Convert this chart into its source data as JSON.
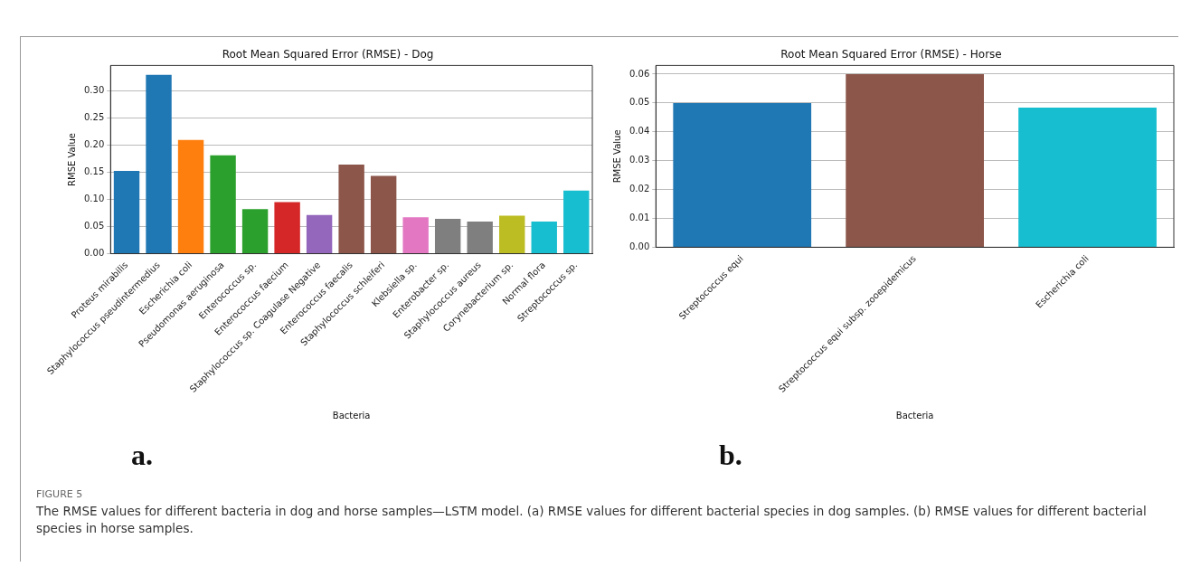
{
  "chart_data": [
    {
      "type": "bar",
      "title": "Root Mean Squared Error (RMSE) - Dog",
      "xlabel": "Bacteria",
      "ylabel": "RMSE Value",
      "categories": [
        "Proteus mirabilis",
        "Staphylococcus pseudintermedius",
        "Escherichia coli",
        "Pseudomonas aeruginosa",
        "Enterococcus sp.",
        "Enterococcus faecium",
        "Staphylococcus sp. Coagulase Negative",
        "Enterococcus faecalis",
        "Staphylococcus schleiferi",
        "Klebsiella sp.",
        "Enterobacter sp.",
        "Staphylococcus aureus",
        "Corynebacterium sp.",
        "Normal flora",
        "Streptococcus sp."
      ],
      "values": [
        0.152,
        0.329,
        0.209,
        0.181,
        0.082,
        0.095,
        0.071,
        0.164,
        0.143,
        0.067,
        0.064,
        0.059,
        0.07,
        0.059,
        0.116
      ],
      "colors": [
        "#1f77b4",
        "#1f77b4",
        "#ff7f0e",
        "#2ca02c",
        "#2ca02c",
        "#d62728",
        "#9467bd",
        "#8c564b",
        "#8c564b",
        "#e377c2",
        "#7f7f7f",
        "#7f7f7f",
        "#bcbd22",
        "#17becf",
        "#17becf"
      ],
      "ylim": [
        0,
        0.346
      ],
      "yticks": [
        {
          "value": 0,
          "label": "0.00"
        },
        {
          "value": 0.05,
          "label": "0.05"
        },
        {
          "value": 0.1,
          "label": "0.10"
        },
        {
          "value": 0.15,
          "label": "0.15"
        },
        {
          "value": 0.2,
          "label": "0.20"
        },
        {
          "value": 0.25,
          "label": "0.25"
        },
        {
          "value": 0.3,
          "label": "0.30"
        }
      ],
      "grid": "y",
      "legend": false,
      "annotations": [
        "a."
      ]
    },
    {
      "type": "bar",
      "title": "Root Mean Squared Error (RMSE) - Horse",
      "xlabel": "Bacteria",
      "ylabel": "RMSE Value",
      "categories": [
        "Streptococcus equi",
        "Streptococcus equi subsp. zooepidemicus",
        "Escherichia coli"
      ],
      "values": [
        0.05,
        0.06,
        0.0484
      ],
      "colors": [
        "#1f77b4",
        "#8c564b",
        "#17becf"
      ],
      "ylim": [
        0,
        0.063
      ],
      "yticks": [
        {
          "value": 0,
          "label": "0.00"
        },
        {
          "value": 0.01,
          "label": "0.01"
        },
        {
          "value": 0.02,
          "label": "0.02"
        },
        {
          "value": 0.03,
          "label": "0.03"
        },
        {
          "value": 0.04,
          "label": "0.04"
        },
        {
          "value": 0.05,
          "label": "0.05"
        },
        {
          "value": 0.06,
          "label": "0.06"
        }
      ],
      "grid": "y",
      "legend": false,
      "annotations": [
        "b.",
        "FIGURE 5",
        "The RMSE values for different bacteria in dog and horse samples—LSTM model. (a) RMSE values for different bacterial species in dog samples. (b) RMSE values for different bacterial species in horse samples."
      ]
    }
  ]
}
